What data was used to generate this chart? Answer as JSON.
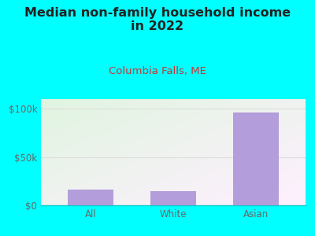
{
  "title": "Median non-family household income\nin 2022",
  "subtitle": "Columbia Falls, ME",
  "categories": [
    "All",
    "White",
    "Asian"
  ],
  "values": [
    16000,
    15000,
    96000
  ],
  "bar_color": "#b39ddb",
  "background_outer": "#00ffff",
  "title_fontsize": 11.5,
  "subtitle_fontsize": 9.5,
  "subtitle_color": "#cc3333",
  "title_color": "#222222",
  "tick_color": "#666666",
  "ylim": [
    0,
    110000
  ],
  "yticks": [
    0,
    50000,
    100000
  ],
  "ytick_labels": [
    "$0",
    "$50k",
    "$100k"
  ],
  "grid_color": "#dddddd"
}
